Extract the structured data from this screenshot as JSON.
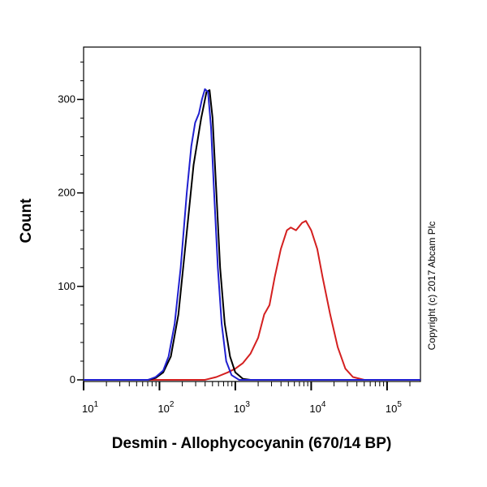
{
  "chart_data": {
    "type": "line",
    "title": "",
    "xlabel": "Desmin - Allophycocyanin (670/14 BP)",
    "ylabel": "Count",
    "xscale": "log10",
    "xlim_log10": [
      1,
      5.44
    ],
    "ylim": [
      0,
      356
    ],
    "x_ticks": [
      {
        "base": "10",
        "exp": "1",
        "v": 1
      },
      {
        "base": "10",
        "exp": "2",
        "v": 2
      },
      {
        "base": "10",
        "exp": "3",
        "v": 3
      },
      {
        "base": "10",
        "exp": "4",
        "v": 4
      },
      {
        "base": "10",
        "exp": "5",
        "v": 5
      }
    ],
    "y_ticks": [
      0,
      100,
      200,
      300
    ],
    "annotation": "Copyright (c) 2017 Abcam Plc",
    "series": [
      {
        "name": "red",
        "color": "#d42020",
        "points_log10x": [
          [
            1,
            0
          ],
          [
            2.6,
            0
          ],
          [
            2.75,
            3
          ],
          [
            2.9,
            8
          ],
          [
            3.0,
            12
          ],
          [
            3.1,
            18
          ],
          [
            3.2,
            28
          ],
          [
            3.3,
            45
          ],
          [
            3.38,
            70
          ],
          [
            3.45,
            80
          ],
          [
            3.52,
            110
          ],
          [
            3.6,
            140
          ],
          [
            3.68,
            160
          ],
          [
            3.73,
            163
          ],
          [
            3.8,
            160
          ],
          [
            3.88,
            168
          ],
          [
            3.93,
            170
          ],
          [
            4.0,
            160
          ],
          [
            4.08,
            140
          ],
          [
            4.15,
            110
          ],
          [
            4.25,
            70
          ],
          [
            4.35,
            35
          ],
          [
            4.45,
            12
          ],
          [
            4.55,
            3
          ],
          [
            4.7,
            0
          ],
          [
            5.44,
            0
          ]
        ]
      },
      {
        "name": "black",
        "color": "#000000",
        "points_log10x": [
          [
            1,
            0
          ],
          [
            1.85,
            0
          ],
          [
            1.95,
            2
          ],
          [
            2.05,
            8
          ],
          [
            2.15,
            25
          ],
          [
            2.25,
            70
          ],
          [
            2.35,
            150
          ],
          [
            2.45,
            230
          ],
          [
            2.55,
            280
          ],
          [
            2.62,
            308
          ],
          [
            2.66,
            310
          ],
          [
            2.7,
            280
          ],
          [
            2.75,
            200
          ],
          [
            2.8,
            120
          ],
          [
            2.86,
            60
          ],
          [
            2.93,
            25
          ],
          [
            3.0,
            8
          ],
          [
            3.1,
            1
          ],
          [
            3.2,
            0
          ],
          [
            5.44,
            0
          ]
        ]
      },
      {
        "name": "blue",
        "color": "#2020d0",
        "points_log10x": [
          [
            1,
            0
          ],
          [
            1.85,
            0
          ],
          [
            1.95,
            3
          ],
          [
            2.05,
            10
          ],
          [
            2.12,
            25
          ],
          [
            2.2,
            60
          ],
          [
            2.28,
            120
          ],
          [
            2.36,
            200
          ],
          [
            2.42,
            250
          ],
          [
            2.47,
            275
          ],
          [
            2.52,
            285
          ],
          [
            2.56,
            300
          ],
          [
            2.6,
            311
          ],
          [
            2.64,
            308
          ],
          [
            2.68,
            270
          ],
          [
            2.72,
            200
          ],
          [
            2.77,
            120
          ],
          [
            2.82,
            60
          ],
          [
            2.88,
            20
          ],
          [
            2.95,
            5
          ],
          [
            3.05,
            0
          ],
          [
            5.44,
            0
          ]
        ]
      }
    ]
  }
}
